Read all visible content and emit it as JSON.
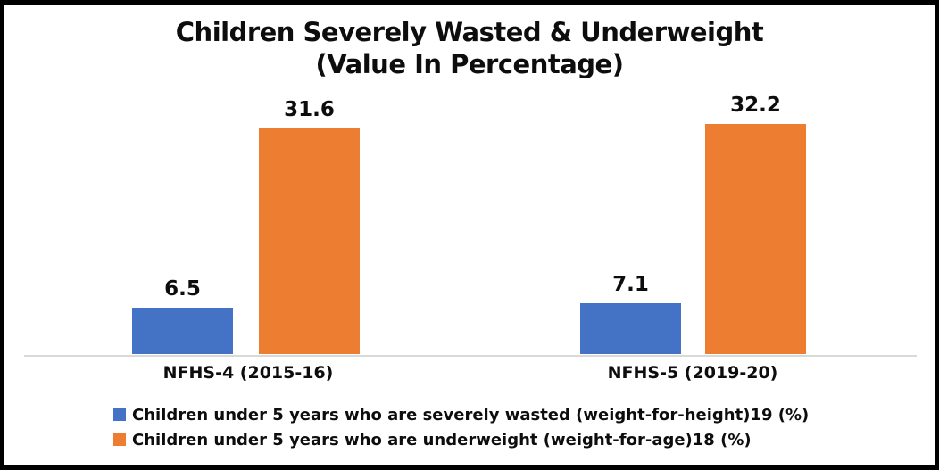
{
  "chart_data": {
    "type": "bar",
    "title": "Children Severely Wasted & Underweight (Value In Percentage)",
    "title_line1": "Children Severely Wasted & Underweight",
    "title_line2": "(Value In Percentage)",
    "categories": [
      "NFHS-4 (2015-16)",
      "NFHS-5 (2019-20)"
    ],
    "series": [
      {
        "name": "Children under 5 years who are severely wasted (weight-for-height)19 (%)",
        "color": "#4472C4",
        "values": [
          6.5,
          7.1
        ]
      },
      {
        "name": "Children under 5 years who are underweight (weight-for-age)18 (%)",
        "color": "#ED7D31",
        "values": [
          31.6,
          32.2
        ]
      }
    ],
    "ylim": [
      0,
      35
    ],
    "grid": false,
    "y_axis_visible": false,
    "legend_position": "bottom-left",
    "axis_line_color": "#D9D9D9"
  }
}
